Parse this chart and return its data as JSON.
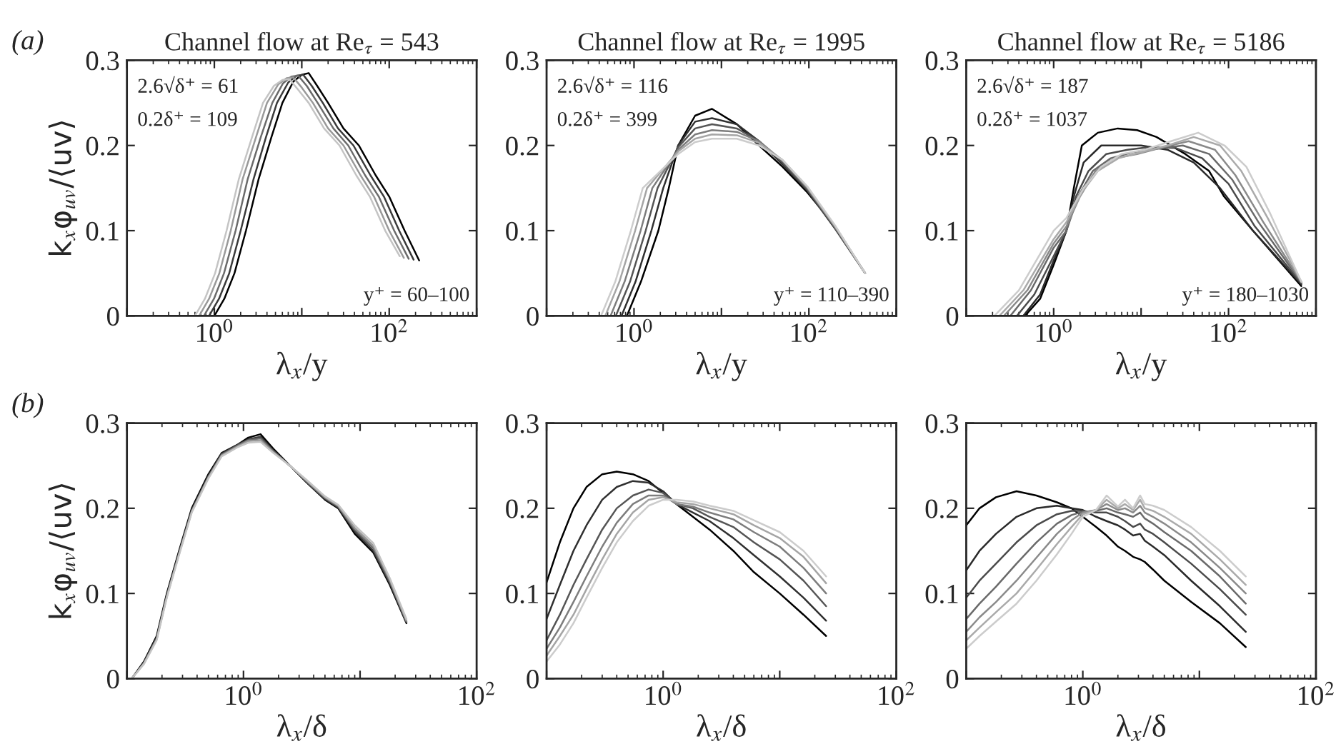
{
  "chart_data": [
    {
      "type": "line",
      "title": "Channel flow at Re$_{τ}$ = 543",
      "xlabel": "λ$_{x}$/y",
      "ylabel": "k$_{x}$φ$_{uv}$/⟨uv⟩",
      "log": "x",
      "xlim": [
        0.1,
        1000
      ],
      "ylim": [
        0,
        0.3
      ],
      "xticks": [
        {
          "value": 0.1,
          "label": null
        },
        {
          "value": 1,
          "label": "10$^{0}$"
        },
        {
          "value": 10,
          "label": null
        },
        {
          "value": 100,
          "label": "10$^{2}$"
        },
        {
          "value": 1000,
          "label": null
        }
      ],
      "yticks": [
        0,
        0.1,
        0.2,
        0.3
      ],
      "grid": false,
      "annotations": [
        "(a)",
        "2.6√δ⁺ = 61",
        "0.2δ⁺ = 109",
        "y⁺ = 60–100"
      ],
      "series": [
        {
          "color": "#000000",
          "x": [
            1.0,
            1.3,
            1.7,
            2.3,
            3.2,
            4.5,
            6,
            8,
            10,
            12,
            15,
            20,
            30,
            45,
            70,
            100,
            150,
            220
          ],
          "values": [
            0,
            0.02,
            0.05,
            0.1,
            0.16,
            0.21,
            0.25,
            0.275,
            0.283,
            0.285,
            0.27,
            0.25,
            0.22,
            0.2,
            0.165,
            0.14,
            0.1,
            0.065
          ]
        },
        {
          "color": "#3a3a3a",
          "x": [
            0.87,
            1.13,
            1.48,
            2.0,
            2.8,
            3.9,
            5.2,
            7,
            8.7,
            10.4,
            13,
            17.4,
            26,
            39,
            61,
            87,
            130,
            190
          ],
          "values": [
            0,
            0.02,
            0.05,
            0.1,
            0.16,
            0.21,
            0.25,
            0.274,
            0.282,
            0.283,
            0.27,
            0.25,
            0.22,
            0.2,
            0.165,
            0.14,
            0.1,
            0.066
          ]
        },
        {
          "color": "#6a6a6a",
          "x": [
            0.76,
            0.99,
            1.29,
            1.75,
            2.4,
            3.4,
            4.6,
            6.1,
            7.6,
            9.1,
            11.4,
            15.2,
            23,
            34,
            53,
            76,
            114,
            167
          ],
          "values": [
            0,
            0.02,
            0.05,
            0.1,
            0.16,
            0.21,
            0.25,
            0.273,
            0.281,
            0.282,
            0.27,
            0.25,
            0.22,
            0.2,
            0.165,
            0.14,
            0.1,
            0.067
          ]
        },
        {
          "color": "#999999",
          "x": [
            0.67,
            0.87,
            1.14,
            1.54,
            2.1,
            3.0,
            4.0,
            5.4,
            6.7,
            8.0,
            10,
            13.4,
            20,
            30,
            47,
            67,
            100,
            147
          ],
          "values": [
            0,
            0.02,
            0.05,
            0.1,
            0.16,
            0.21,
            0.25,
            0.272,
            0.279,
            0.28,
            0.268,
            0.25,
            0.22,
            0.2,
            0.165,
            0.14,
            0.1,
            0.068
          ]
        },
        {
          "color": "#c4c4c4",
          "x": [
            0.6,
            0.78,
            1.02,
            1.38,
            1.9,
            2.7,
            3.6,
            4.8,
            6,
            7.2,
            9,
            12,
            18,
            27,
            42,
            60,
            90,
            132
          ],
          "values": [
            0,
            0.02,
            0.05,
            0.1,
            0.16,
            0.21,
            0.25,
            0.27,
            0.277,
            0.278,
            0.266,
            0.25,
            0.22,
            0.2,
            0.165,
            0.14,
            0.1,
            0.07
          ]
        }
      ]
    },
    {
      "type": "line",
      "title": "Channel flow at Re$_{τ}$ = 1995",
      "xlabel": "λ$_{x}$/y",
      "log": "x",
      "xlim": [
        0.1,
        1000
      ],
      "ylim": [
        0,
        0.3
      ],
      "xticks": [
        {
          "value": 0.1,
          "label": null
        },
        {
          "value": 1,
          "label": "10$^{0}$"
        },
        {
          "value": 10,
          "label": null
        },
        {
          "value": 100,
          "label": "10$^{2}$"
        },
        {
          "value": 1000,
          "label": null
        }
      ],
      "yticks": [
        0,
        0.1,
        0.2,
        0.3
      ],
      "grid": false,
      "annotations": [
        "2.6√δ⁺ = 116",
        "0.2δ⁺ = 399",
        "y⁺ = 110–390"
      ],
      "series": [
        {
          "color": "#000000",
          "x": [
            0.83,
            1.2,
            1.9,
            2.5,
            3.2,
            5,
            7.8,
            15,
            27,
            50,
            96,
            200,
            440
          ],
          "values": [
            0,
            0.04,
            0.1,
            0.15,
            0.2,
            0.235,
            0.243,
            0.225,
            0.2,
            0.175,
            0.145,
            0.105,
            0.05
          ]
        },
        {
          "color": "#303030",
          "x": [
            0.72,
            1.04,
            1.58,
            2.16,
            3.2,
            5,
            7.8,
            15,
            27,
            50,
            96,
            200,
            440
          ],
          "values": [
            0,
            0.04,
            0.1,
            0.15,
            0.2,
            0.228,
            0.232,
            0.225,
            0.205,
            0.178,
            0.147,
            0.102,
            0.05
          ]
        },
        {
          "color": "#555555",
          "x": [
            0.62,
            0.9,
            1.36,
            1.86,
            3.2,
            5,
            7.8,
            15,
            27,
            50,
            96,
            200,
            440
          ],
          "values": [
            0,
            0.04,
            0.1,
            0.15,
            0.198,
            0.22,
            0.225,
            0.22,
            0.205,
            0.18,
            0.148,
            0.103,
            0.05
          ]
        },
        {
          "color": "#7d7d7d",
          "x": [
            0.54,
            0.78,
            1.19,
            1.62,
            3.2,
            5,
            7.8,
            15,
            27,
            50,
            96,
            200,
            440
          ],
          "values": [
            0,
            0.04,
            0.1,
            0.15,
            0.195,
            0.213,
            0.218,
            0.216,
            0.205,
            0.182,
            0.15,
            0.104,
            0.05
          ]
        },
        {
          "color": "#a5a5a5",
          "x": [
            0.47,
            0.68,
            1.03,
            1.41,
            3.2,
            5,
            7.8,
            15,
            27,
            50,
            96,
            200,
            440
          ],
          "values": [
            0,
            0.04,
            0.1,
            0.15,
            0.193,
            0.208,
            0.213,
            0.212,
            0.203,
            0.183,
            0.151,
            0.105,
            0.05
          ]
        },
        {
          "color": "#cccccc",
          "x": [
            0.42,
            0.61,
            0.92,
            1.26,
            3.2,
            5,
            7.8,
            15,
            27,
            50,
            96,
            200,
            440
          ],
          "values": [
            0,
            0.04,
            0.1,
            0.15,
            0.19,
            0.204,
            0.208,
            0.208,
            0.2,
            0.183,
            0.152,
            0.106,
            0.05
          ]
        }
      ]
    },
    {
      "type": "line",
      "title": "Channel flow at Re$_{τ}$ = 5186",
      "xlabel": "λ$_{x}$/y",
      "log": "x",
      "xlim": [
        0.1,
        1000
      ],
      "ylim": [
        0,
        0.3
      ],
      "xticks": [
        {
          "value": 0.1,
          "label": null
        },
        {
          "value": 1,
          "label": "10$^{0}$"
        },
        {
          "value": 10,
          "label": null
        },
        {
          "value": 100,
          "label": "10$^{2}$"
        },
        {
          "value": 1000,
          "label": null
        }
      ],
      "yticks": [
        0,
        0.1,
        0.2,
        0.3
      ],
      "grid": false,
      "annotations": [
        "2.6√δ⁺ = 187",
        "0.2δ⁺ = 1037",
        "y⁺ = 180–1030"
      ],
      "series": [
        {
          "color": "#000000",
          "x": [
            0.47,
            0.7,
            1.0,
            1.4,
            1.7,
            2.1,
            3.2,
            5.4,
            9,
            15,
            32,
            60,
            89,
            190,
            680
          ],
          "values": [
            0,
            0.02,
            0.06,
            0.1,
            0.15,
            0.2,
            0.215,
            0.22,
            0.218,
            0.21,
            0.19,
            0.17,
            0.14,
            0.1,
            0.035
          ]
        },
        {
          "color": "#2a2a2a",
          "x": [
            0.45,
            0.7,
            1.0,
            1.4,
            1.7,
            2.2,
            3.5,
            6,
            10,
            20,
            40,
            80,
            190,
            680
          ],
          "values": [
            0,
            0.025,
            0.065,
            0.1,
            0.14,
            0.18,
            0.2,
            0.2,
            0.2,
            0.195,
            0.18,
            0.15,
            0.1,
            0.037
          ]
        },
        {
          "color": "#4a4a4a",
          "x": [
            0.38,
            0.6,
            1.0,
            1.4,
            1.8,
            2.5,
            4,
            7,
            12,
            25,
            50,
            100,
            200,
            680
          ],
          "values": [
            0,
            0.025,
            0.07,
            0.1,
            0.14,
            0.17,
            0.19,
            0.195,
            0.198,
            0.197,
            0.185,
            0.155,
            0.105,
            0.038
          ]
        },
        {
          "color": "#6a6a6a",
          "x": [
            0.32,
            0.55,
            1.0,
            1.4,
            1.9,
            2.8,
            4.5,
            8,
            15,
            30,
            60,
            110,
            220,
            680
          ],
          "values": [
            0,
            0.03,
            0.08,
            0.1,
            0.14,
            0.17,
            0.185,
            0.192,
            0.196,
            0.2,
            0.19,
            0.16,
            0.11,
            0.039
          ]
        },
        {
          "color": "#8a8a8a",
          "x": [
            0.27,
            0.5,
            1.0,
            1.4,
            2.0,
            3.0,
            5,
            9,
            18,
            35,
            70,
            120,
            250,
            680
          ],
          "values": [
            0,
            0.03,
            0.085,
            0.105,
            0.14,
            0.17,
            0.185,
            0.19,
            0.198,
            0.205,
            0.195,
            0.165,
            0.11,
            0.04
          ]
        },
        {
          "color": "#aaaaaa",
          "x": [
            0.24,
            0.45,
            1.0,
            1.4,
            2.1,
            3.2,
            5.5,
            10,
            20,
            40,
            80,
            140,
            280,
            680
          ],
          "values": [
            0,
            0.03,
            0.09,
            0.11,
            0.145,
            0.17,
            0.185,
            0.192,
            0.2,
            0.21,
            0.2,
            0.17,
            0.115,
            0.04
          ]
        },
        {
          "color": "#cccccc",
          "x": [
            0.21,
            0.4,
            1.0,
            1.4,
            2.2,
            3.5,
            6,
            11,
            22,
            45,
            90,
            160,
            300,
            680
          ],
          "values": [
            0,
            0.03,
            0.1,
            0.115,
            0.15,
            0.175,
            0.19,
            0.195,
            0.205,
            0.215,
            0.2,
            0.175,
            0.12,
            0.04
          ]
        }
      ]
    },
    {
      "type": "line",
      "xlabel": "λ$_{x}$/δ",
      "ylabel": "k$_{x}$φ$_{uv}$/⟨uv⟩",
      "log": "x",
      "xlim": [
        0.1,
        100
      ],
      "ylim": [
        0,
        0.3
      ],
      "xticks": [
        {
          "value": 0.1,
          "label": null
        },
        {
          "value": 1,
          "label": "10$^{0}$"
        },
        {
          "value": 10,
          "label": null
        },
        {
          "value": 100,
          "label": "10$^{2}$"
        }
      ],
      "yticks": [
        0,
        0.1,
        0.2,
        0.3
      ],
      "grid": false,
      "annotations": [
        "(b)"
      ],
      "x": [
        0.11,
        0.14,
        0.18,
        0.22,
        0.28,
        0.36,
        0.5,
        0.65,
        0.9,
        1.1,
        1.4,
        1.8,
        2.5,
        3.5,
        5,
        6.5,
        9,
        13,
        18,
        25
      ],
      "series": [
        {
          "color": "#000000",
          "values": [
            0,
            0.02,
            0.05,
            0.1,
            0.15,
            0.2,
            0.24,
            0.265,
            0.275,
            0.283,
            0.287,
            0.27,
            0.25,
            0.23,
            0.21,
            0.2,
            0.17,
            0.148,
            0.11,
            0.065
          ]
        },
        {
          "color": "#3a3a3a",
          "values": [
            0,
            0.019,
            0.048,
            0.098,
            0.148,
            0.198,
            0.238,
            0.264,
            0.275,
            0.281,
            0.284,
            0.268,
            0.25,
            0.23,
            0.211,
            0.201,
            0.173,
            0.15,
            0.112,
            0.066
          ]
        },
        {
          "color": "#6a6a6a",
          "values": [
            0,
            0.018,
            0.047,
            0.097,
            0.147,
            0.197,
            0.237,
            0.263,
            0.274,
            0.28,
            0.282,
            0.267,
            0.25,
            0.231,
            0.212,
            0.202,
            0.175,
            0.153,
            0.114,
            0.067
          ]
        },
        {
          "color": "#999999",
          "values": [
            0,
            0.018,
            0.046,
            0.096,
            0.146,
            0.196,
            0.236,
            0.262,
            0.273,
            0.279,
            0.28,
            0.266,
            0.25,
            0.232,
            0.213,
            0.203,
            0.177,
            0.156,
            0.116,
            0.068
          ]
        },
        {
          "color": "#c4c4c4",
          "values": [
            0,
            0.017,
            0.045,
            0.095,
            0.145,
            0.195,
            0.235,
            0.261,
            0.272,
            0.277,
            0.278,
            0.265,
            0.25,
            0.233,
            0.214,
            0.204,
            0.18,
            0.159,
            0.118,
            0.07
          ]
        }
      ]
    },
    {
      "type": "line",
      "xlabel": "λ$_{x}$/δ",
      "log": "x",
      "xlim": [
        0.1,
        100
      ],
      "ylim": [
        0,
        0.3
      ],
      "xticks": [
        {
          "value": 0.1,
          "label": null
        },
        {
          "value": 1,
          "label": "10$^{0}$"
        },
        {
          "value": 10,
          "label": null
        },
        {
          "value": 100,
          "label": "10$^{2}$"
        }
      ],
      "yticks": [
        0,
        0.1,
        0.2,
        0.3
      ],
      "grid": false,
      "x": [
        0.1,
        0.13,
        0.17,
        0.22,
        0.3,
        0.4,
        0.55,
        0.75,
        1.0,
        1.3,
        1.8,
        2.5,
        4,
        6,
        10,
        16,
        25
      ],
      "series": [
        {
          "color": "#000000",
          "values": [
            0.113,
            0.16,
            0.2,
            0.225,
            0.24,
            0.243,
            0.24,
            0.232,
            0.218,
            0.205,
            0.19,
            0.175,
            0.15,
            0.125,
            0.1,
            0.075,
            0.05
          ]
        },
        {
          "color": "#303030",
          "values": [
            0.07,
            0.11,
            0.15,
            0.18,
            0.21,
            0.225,
            0.232,
            0.23,
            0.22,
            0.205,
            0.195,
            0.185,
            0.165,
            0.145,
            0.12,
            0.095,
            0.068
          ]
        },
        {
          "color": "#555555",
          "values": [
            0.045,
            0.075,
            0.11,
            0.14,
            0.175,
            0.2,
            0.215,
            0.222,
            0.218,
            0.205,
            0.2,
            0.19,
            0.178,
            0.16,
            0.14,
            0.115,
            0.085
          ]
        },
        {
          "color": "#7d7d7d",
          "values": [
            0.035,
            0.06,
            0.09,
            0.12,
            0.155,
            0.183,
            0.205,
            0.215,
            0.215,
            0.205,
            0.202,
            0.195,
            0.187,
            0.172,
            0.155,
            0.13,
            0.1
          ]
        },
        {
          "color": "#a5a5a5",
          "values": [
            0.027,
            0.05,
            0.075,
            0.105,
            0.14,
            0.17,
            0.195,
            0.21,
            0.213,
            0.207,
            0.205,
            0.2,
            0.193,
            0.18,
            0.165,
            0.143,
            0.112
          ]
        },
        {
          "color": "#cccccc",
          "values": [
            0.02,
            0.04,
            0.065,
            0.095,
            0.13,
            0.16,
            0.185,
            0.203,
            0.21,
            0.21,
            0.208,
            0.203,
            0.197,
            0.186,
            0.172,
            0.15,
            0.12
          ]
        }
      ]
    },
    {
      "type": "line",
      "xlabel": "λ$_{x}$/δ",
      "log": "x",
      "xlim": [
        0.1,
        100
      ],
      "ylim": [
        0,
        0.3
      ],
      "xticks": [
        {
          "value": 0.1,
          "label": null
        },
        {
          "value": 1,
          "label": "10$^{0}$"
        },
        {
          "value": 10,
          "label": null
        },
        {
          "value": 100,
          "label": "10$^{2}$"
        }
      ],
      "yticks": [
        0,
        0.1,
        0.2,
        0.3
      ],
      "grid": false,
      "x": [
        0.1,
        0.13,
        0.18,
        0.27,
        0.4,
        0.6,
        0.8,
        1.0,
        1.3,
        1.6,
        2.0,
        2.3,
        2.7,
        3.1,
        3.4,
        4,
        5,
        8.5,
        15,
        25
      ],
      "series": [
        {
          "color": "#000000",
          "values": [
            0.18,
            0.2,
            0.213,
            0.22,
            0.215,
            0.207,
            0.2,
            0.19,
            0.178,
            0.168,
            0.155,
            0.15,
            0.143,
            0.14,
            0.137,
            0.128,
            0.115,
            0.09,
            0.065,
            0.037
          ]
        },
        {
          "color": "#2a2a2a",
          "values": [
            0.127,
            0.15,
            0.17,
            0.19,
            0.2,
            0.203,
            0.2,
            0.198,
            0.19,
            0.185,
            0.18,
            0.175,
            0.168,
            0.17,
            0.162,
            0.155,
            0.145,
            0.115,
            0.085,
            0.055
          ]
        },
        {
          "color": "#4a4a4a",
          "values": [
            0.095,
            0.115,
            0.135,
            0.16,
            0.18,
            0.193,
            0.197,
            0.197,
            0.195,
            0.195,
            0.19,
            0.185,
            0.178,
            0.182,
            0.175,
            0.17,
            0.16,
            0.135,
            0.105,
            0.075
          ]
        },
        {
          "color": "#6a6a6a",
          "values": [
            0.07,
            0.088,
            0.108,
            0.135,
            0.16,
            0.182,
            0.192,
            0.196,
            0.197,
            0.2,
            0.195,
            0.193,
            0.19,
            0.195,
            0.188,
            0.182,
            0.172,
            0.15,
            0.12,
            0.088
          ]
        },
        {
          "color": "#8a8a8a",
          "values": [
            0.055,
            0.072,
            0.09,
            0.115,
            0.142,
            0.17,
            0.186,
            0.195,
            0.198,
            0.205,
            0.198,
            0.2,
            0.195,
            0.203,
            0.195,
            0.19,
            0.182,
            0.16,
            0.13,
            0.1
          ]
        },
        {
          "color": "#aaaaaa",
          "values": [
            0.045,
            0.06,
            0.078,
            0.1,
            0.128,
            0.158,
            0.178,
            0.193,
            0.198,
            0.21,
            0.2,
            0.205,
            0.198,
            0.21,
            0.2,
            0.197,
            0.19,
            0.17,
            0.14,
            0.11
          ]
        },
        {
          "color": "#cccccc",
          "values": [
            0.035,
            0.05,
            0.067,
            0.088,
            0.115,
            0.146,
            0.17,
            0.19,
            0.198,
            0.215,
            0.202,
            0.21,
            0.2,
            0.215,
            0.205,
            0.203,
            0.198,
            0.178,
            0.15,
            0.12
          ]
        }
      ]
    }
  ]
}
